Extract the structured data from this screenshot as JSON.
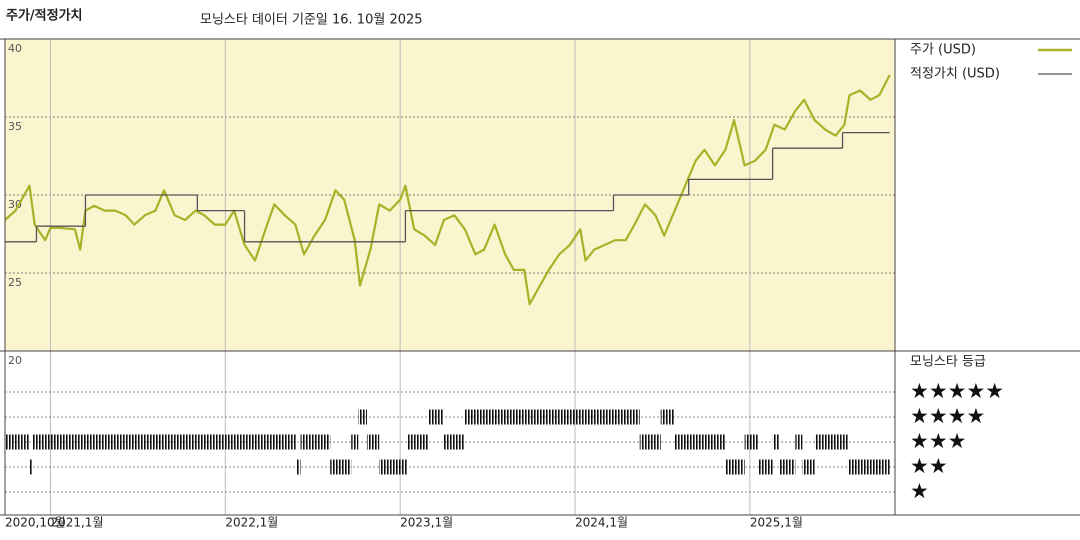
{
  "chart_data": {
    "type": "line",
    "title": "주가/적정가치",
    "subtitle": "모닝스타 데이터 기준일 16. 10월 2025",
    "xlim": [
      2020.74,
      2025.83
    ],
    "xticks": [
      {
        "value": 2020.74,
        "label": "2020,10월"
      },
      {
        "value": 2021,
        "label": "2021,1월"
      },
      {
        "value": 2022,
        "label": "2022,1월"
      },
      {
        "value": 2023,
        "label": "2023,1월"
      },
      {
        "value": 2024,
        "label": "2024,1월"
      },
      {
        "value": 2025,
        "label": "2025,1월"
      }
    ],
    "ylim": [
      20,
      40
    ],
    "yticks": [
      40,
      35,
      30,
      25,
      20
    ],
    "grid": true,
    "series": [
      {
        "name": "주가 (USD)",
        "color": "#a9b128",
        "step": false,
        "x": [
          2020.74,
          2020.8,
          2020.85,
          2020.88,
          2020.91,
          2020.97,
          2021.0,
          2021.05,
          2021.14,
          2021.17,
          2021.2,
          2021.25,
          2021.31,
          2021.37,
          2021.43,
          2021.48,
          2021.54,
          2021.6,
          2021.65,
          2021.71,
          2021.77,
          2021.83,
          2021.88,
          2021.94,
          2022.0,
          2022.05,
          2022.11,
          2022.17,
          2022.23,
          2022.28,
          2022.34,
          2022.4,
          2022.45,
          2022.51,
          2022.57,
          2022.63,
          2022.68,
          2022.74,
          2022.77,
          2022.83,
          2022.88,
          2022.94,
          2023.0,
          2023.03,
          2023.08,
          2023.14,
          2023.2,
          2023.25,
          2023.31,
          2023.37,
          2023.43,
          2023.48,
          2023.54,
          2023.6,
          2023.65,
          2023.71,
          2023.74,
          2023.8,
          2023.85,
          2023.91,
          2023.97,
          2024.03,
          2024.06,
          2024.11,
          2024.17,
          2024.23,
          2024.29,
          2024.34,
          2024.4,
          2024.46,
          2024.51,
          2024.57,
          2024.63,
          2024.69,
          2024.74,
          2024.8,
          2024.86,
          2024.91,
          2024.97,
          2025.03,
          2025.09,
          2025.14,
          2025.2,
          2025.26,
          2025.31,
          2025.37,
          2025.43,
          2025.49,
          2025.54,
          2025.57,
          2025.63,
          2025.69,
          2025.74,
          2025.8
        ],
        "values": [
          28.4,
          29.0,
          30.0,
          30.6,
          28.1,
          27.1,
          27.9,
          27.9,
          27.8,
          26.5,
          29.0,
          29.3,
          29.0,
          29.0,
          28.7,
          28.1,
          28.7,
          29.0,
          30.3,
          28.7,
          28.4,
          29.0,
          28.7,
          28.1,
          28.1,
          29.0,
          26.8,
          25.8,
          27.8,
          29.4,
          28.7,
          28.1,
          26.2,
          27.4,
          28.4,
          30.3,
          29.7,
          27.1,
          24.2,
          26.5,
          29.4,
          29.0,
          29.7,
          30.6,
          27.8,
          27.4,
          26.8,
          28.4,
          28.7,
          27.8,
          26.2,
          26.5,
          28.1,
          26.2,
          25.2,
          25.2,
          23.0,
          24.2,
          25.2,
          26.2,
          26.8,
          27.8,
          25.8,
          26.5,
          26.8,
          27.1,
          27.1,
          28.1,
          29.4,
          28.7,
          27.4,
          29.0,
          30.6,
          32.2,
          32.9,
          31.9,
          32.9,
          34.8,
          31.9,
          32.2,
          32.9,
          34.5,
          34.2,
          35.4,
          36.1,
          34.8,
          34.2,
          33.8,
          34.5,
          36.4,
          36.7,
          36.1,
          36.4,
          37.7
        ]
      },
      {
        "name": "적정가치 (USD)",
        "color": "#555555",
        "step": true,
        "x": [
          2020.74,
          2020.92,
          2021.2,
          2021.84,
          2022.11,
          2023.03,
          2024.22,
          2024.65,
          2025.13,
          2025.53,
          2025.8
        ],
        "values": [
          27.0,
          28.0,
          30.0,
          29.0,
          27.0,
          29.0,
          30.0,
          31.0,
          33.0,
          34.0,
          34.0
        ]
      }
    ],
    "rating_title": "모닝스타 등급",
    "rating_labels": [
      "★★★★★",
      "★★★★",
      "★★★",
      "★★",
      "★"
    ],
    "rating_bins": [
      2020.74,
      2020.88,
      2020.9,
      2022.41,
      2022.43,
      2022.6,
      2022.72,
      2022.76,
      2022.81,
      2022.88,
      2023.04,
      2023.16,
      2023.25,
      2023.37,
      2024.37,
      2024.49,
      2024.57,
      2024.86,
      2024.97,
      2025.05,
      2025.13,
      2025.17,
      2025.26,
      2025.3,
      2025.37,
      2025.56,
      2025.8
    ],
    "rating_stars": [
      3,
      2,
      3,
      2,
      3,
      2,
      3,
      4,
      3,
      2,
      3,
      4,
      3,
      4,
      3,
      4,
      3,
      2,
      3,
      2,
      3,
      2,
      3,
      2,
      3,
      2
    ]
  }
}
